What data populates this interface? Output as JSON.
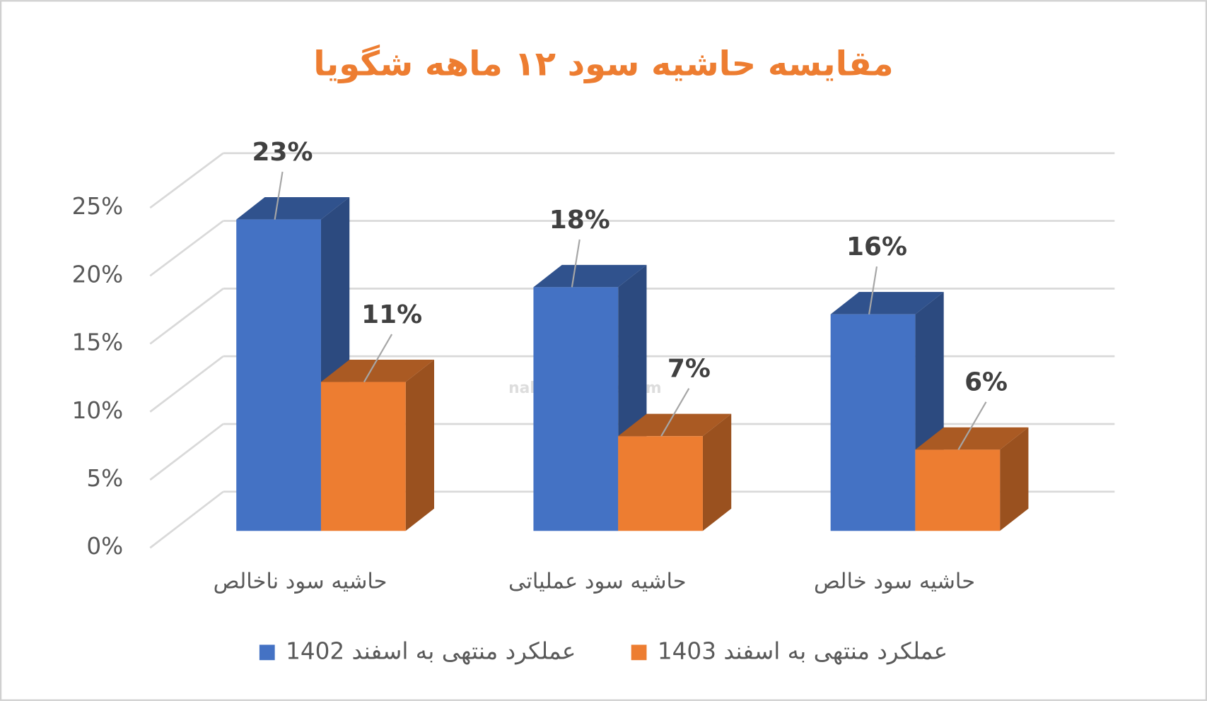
{
  "chart_data": {
    "type": "bar3d",
    "title": "مقایسه حاشیه سود ۱۲ ماهه شگویا",
    "categories": [
      "حاشیه سود ناخالص",
      "حاشیه سود عملیاتی",
      "حاشیه سود خالص"
    ],
    "series": [
      {
        "name": "عملکرد منتهی به اسفند 1402",
        "color": "#4472c4",
        "values": [
          23,
          18,
          16
        ],
        "value_labels": [
          "23%",
          "18%",
          "16%"
        ]
      },
      {
        "name": "عملکرد منتهی به اسفند 1403",
        "color": "#ed7d31",
        "values": [
          11,
          7,
          6
        ],
        "value_labels": [
          "11%",
          "7%",
          "6%"
        ]
      }
    ],
    "ylim": [
      0,
      25
    ],
    "yticks": [
      {
        "value": 0,
        "label": "0%"
      },
      {
        "value": 5,
        "label": "5%"
      },
      {
        "value": 10,
        "label": "10%"
      },
      {
        "value": 15,
        "label": "15%"
      },
      {
        "value": 20,
        "label": "20%"
      },
      {
        "value": 25,
        "label": "25%"
      }
    ],
    "grid": true,
    "legend": "bottom",
    "watermark": "nabzebourse.com"
  }
}
